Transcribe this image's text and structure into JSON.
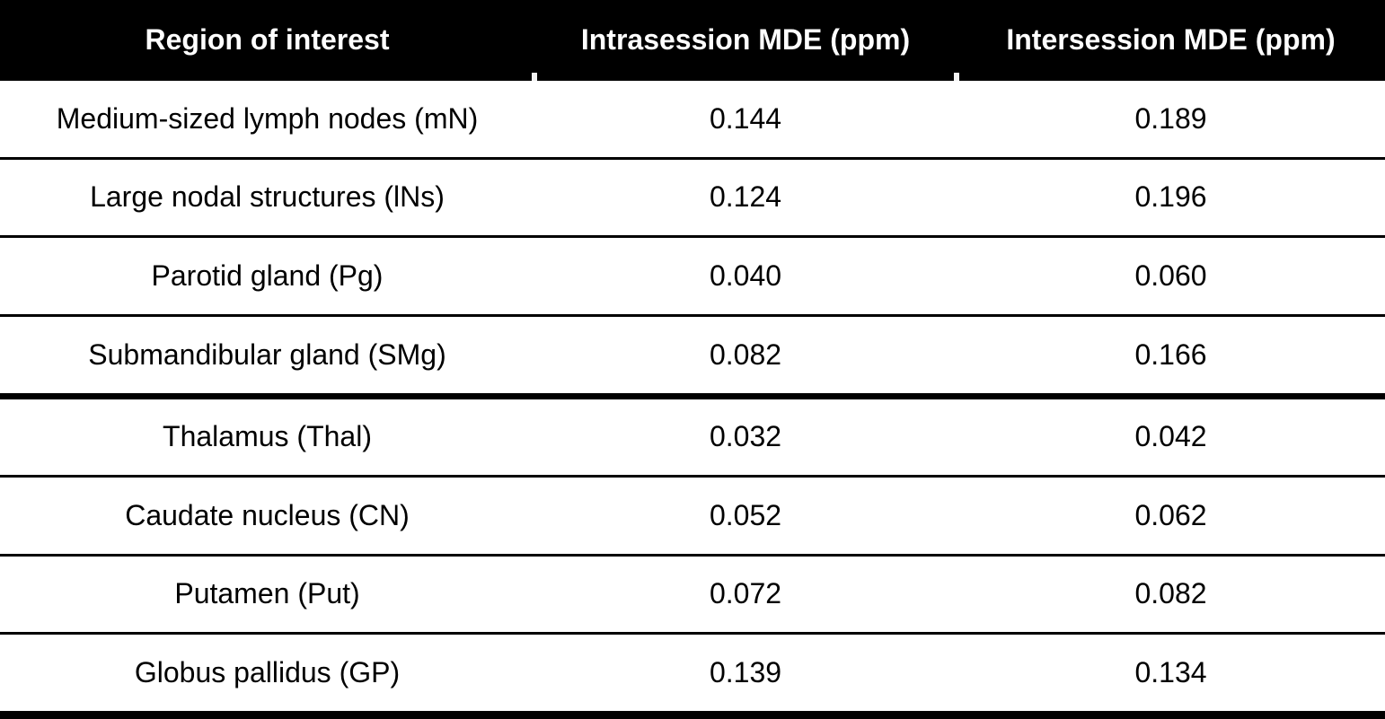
{
  "table": {
    "headers": {
      "region": "Region of interest",
      "intrasession": "Intrasession MDE (ppm)",
      "intersession": "Intersession MDE (ppm)"
    },
    "rows": [
      {
        "region": "Medium-sized lymph nodes (mN)",
        "intra": "0.144",
        "inter": "0.189"
      },
      {
        "region": "Large nodal structures (lNs)",
        "intra": "0.124",
        "inter": "0.196"
      },
      {
        "region": "Parotid gland (Pg)",
        "intra": "0.040",
        "inter": "0.060"
      },
      {
        "region": "Submandibular gland (SMg)",
        "intra": "0.082",
        "inter": "0.166"
      },
      {
        "region": "Thalamus (Thal)",
        "intra": "0.032",
        "inter": "0.042"
      },
      {
        "region": "Caudate nucleus (CN)",
        "intra": "0.052",
        "inter": "0.062"
      },
      {
        "region": "Putamen (Put)",
        "intra": "0.072",
        "inter": "0.082"
      },
      {
        "region": "Globus pallidus (GP)",
        "intra": "0.139",
        "inter": "0.134"
      }
    ],
    "colors": {
      "header_bg": "#000000",
      "header_text": "#ffffff",
      "body_text": "#000000",
      "rule_color": "#000000"
    }
  }
}
